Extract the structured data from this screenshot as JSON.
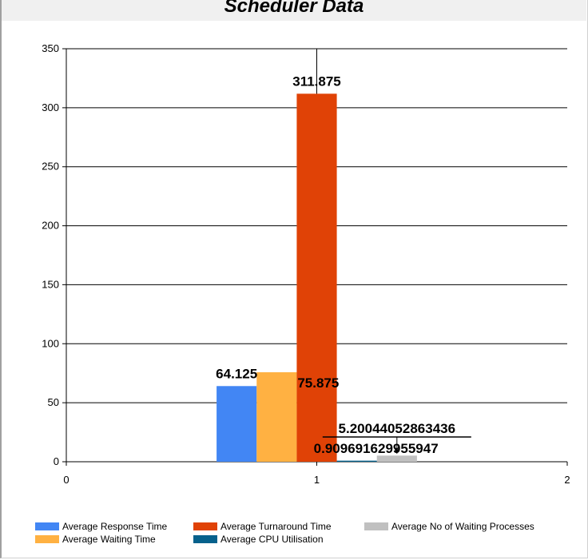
{
  "chart_data": {
    "type": "bar",
    "title": "Scheduler Data",
    "xlabel": "",
    "ylabel": "",
    "x_ticks": [
      "0",
      "1",
      "2"
    ],
    "y_ticks": [
      "0",
      "50",
      "100",
      "150",
      "200",
      "250",
      "300",
      "350"
    ],
    "xlim": [
      0,
      2
    ],
    "ylim": [
      0,
      350
    ],
    "grid": true,
    "legend_position": "bottom",
    "series": [
      {
        "name": "Average Response Time",
        "x": 1,
        "value": 64.125,
        "label": "64.125",
        "color": "#4286f4"
      },
      {
        "name": "Average Waiting Time",
        "x": 1,
        "value": 75.875,
        "label": "75.875",
        "color": "#ffb142"
      },
      {
        "name": "Average Turnaround Time",
        "x": 1,
        "value": 311.875,
        "label": "311.875",
        "color": "#e04206"
      },
      {
        "name": "Average CPU Utilisation",
        "x": 1,
        "value": 0.909691629955947,
        "label": "0.909691629955947",
        "color": "#06618c"
      },
      {
        "name": "Average No of Waiting Processes",
        "x": 1,
        "value": 5.20044052863436,
        "label": "5.20044052863436",
        "color": "#c0c0c0"
      }
    ]
  }
}
